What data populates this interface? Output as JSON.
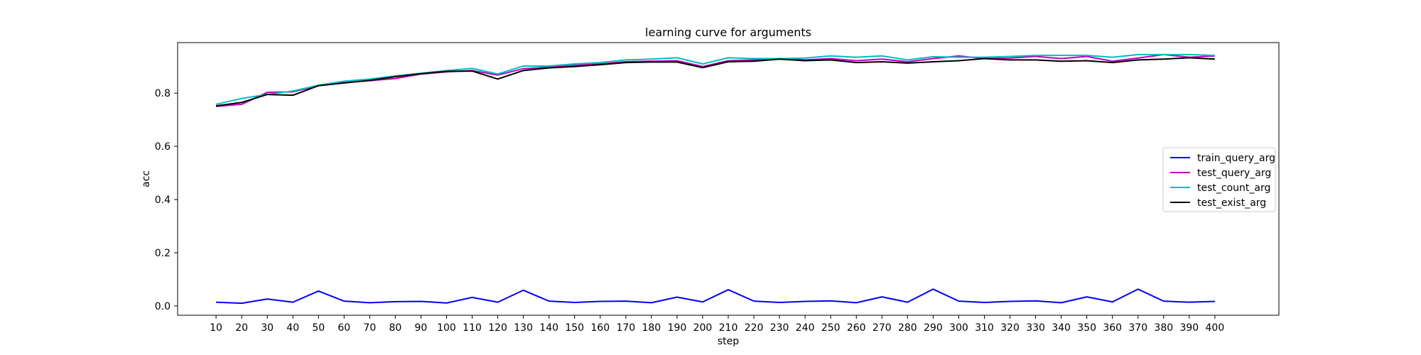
{
  "chart_data": {
    "type": "line",
    "title": "learning curve for arguments",
    "xlabel": "step",
    "ylabel": "acc",
    "x": [
      10,
      20,
      30,
      40,
      50,
      60,
      70,
      80,
      90,
      100,
      110,
      120,
      130,
      140,
      150,
      160,
      170,
      180,
      190,
      200,
      210,
      220,
      230,
      240,
      250,
      260,
      270,
      280,
      290,
      300,
      310,
      320,
      330,
      340,
      350,
      360,
      370,
      380,
      390,
      400
    ],
    "yticks": [
      0.0,
      0.2,
      0.4,
      0.6,
      0.8
    ],
    "xlim": [
      -5,
      425
    ],
    "ylim": [
      -0.035,
      0.99
    ],
    "grid": false,
    "legend_position": "center-right",
    "series": [
      {
        "name": "train_query_arg",
        "color": "#0000ff",
        "values": [
          0.014,
          0.01,
          0.026,
          0.014,
          0.056,
          0.018,
          0.012,
          0.016,
          0.017,
          0.011,
          0.032,
          0.014,
          0.059,
          0.018,
          0.013,
          0.017,
          0.018,
          0.012,
          0.033,
          0.015,
          0.061,
          0.018,
          0.013,
          0.017,
          0.019,
          0.012,
          0.034,
          0.014,
          0.063,
          0.018,
          0.013,
          0.017,
          0.019,
          0.012,
          0.034,
          0.015,
          0.063,
          0.018,
          0.014,
          0.017
        ]
      },
      {
        "name": "test_query_arg",
        "color": "#bf00bf",
        "values": [
          0.75,
          0.758,
          0.803,
          0.805,
          0.828,
          0.84,
          0.847,
          0.855,
          0.872,
          0.88,
          0.885,
          0.868,
          0.892,
          0.898,
          0.905,
          0.91,
          0.918,
          0.92,
          0.922,
          0.9,
          0.922,
          0.925,
          0.93,
          0.925,
          0.93,
          0.922,
          0.928,
          0.918,
          0.93,
          0.94,
          0.93,
          0.932,
          0.938,
          0.93,
          0.938,
          0.92,
          0.932,
          0.945,
          0.935,
          0.94
        ]
      },
      {
        "name": "test_count_arg",
        "color": "#00bfbf",
        "values": [
          0.758,
          0.78,
          0.795,
          0.808,
          0.83,
          0.845,
          0.853,
          0.865,
          0.875,
          0.885,
          0.893,
          0.872,
          0.902,
          0.902,
          0.91,
          0.915,
          0.925,
          0.928,
          0.933,
          0.91,
          0.933,
          0.93,
          0.93,
          0.932,
          0.94,
          0.935,
          0.94,
          0.925,
          0.937,
          0.935,
          0.935,
          0.938,
          0.942,
          0.942,
          0.942,
          0.935,
          0.945,
          0.945,
          0.945,
          0.942
        ]
      },
      {
        "name": "test_exist_arg",
        "color": "#000000",
        "values": [
          0.752,
          0.765,
          0.795,
          0.792,
          0.828,
          0.838,
          0.848,
          0.862,
          0.873,
          0.882,
          0.883,
          0.853,
          0.885,
          0.895,
          0.9,
          0.907,
          0.915,
          0.917,
          0.917,
          0.896,
          0.918,
          0.92,
          0.928,
          0.922,
          0.925,
          0.915,
          0.918,
          0.913,
          0.918,
          0.922,
          0.93,
          0.925,
          0.925,
          0.92,
          0.922,
          0.915,
          0.925,
          0.928,
          0.933,
          0.928
        ]
      }
    ]
  }
}
